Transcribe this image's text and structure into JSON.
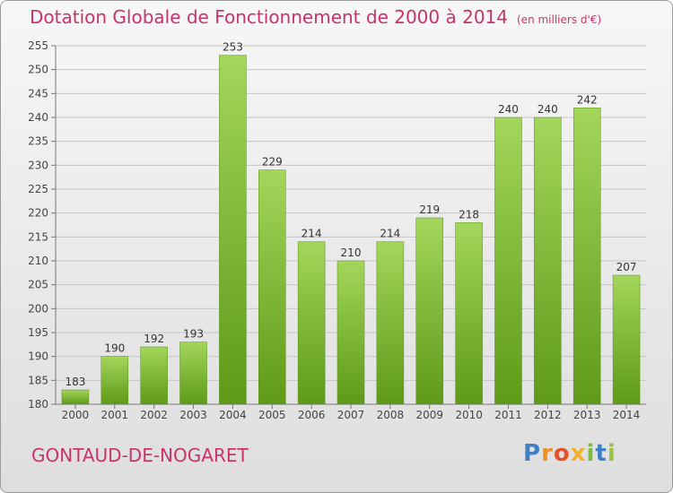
{
  "header": {
    "title": "Dotation Globale de Fonctionnement de 2000 à 2014",
    "unit": "(en milliers d'€)"
  },
  "commune": "GONTAUD-DE-NOGARET",
  "logo": {
    "letters": [
      "P",
      "r",
      "o",
      "x",
      "i",
      "t",
      "i"
    ],
    "colors": [
      "#3f7fc4",
      "#ef8f1f",
      "#e2532b",
      "#f2b02b",
      "#7dbb3c",
      "#3f7fc4",
      "#9ac33d"
    ]
  },
  "chart_data": {
    "type": "bar",
    "title": "Dotation Globale de Fonctionnement de 2000 à 2014",
    "categories": [
      "2000",
      "2001",
      "2002",
      "2003",
      "2004",
      "2005",
      "2006",
      "2007",
      "2008",
      "2009",
      "2010",
      "2011",
      "2012",
      "2013",
      "2014"
    ],
    "values": [
      183,
      190,
      192,
      193,
      253,
      229,
      214,
      210,
      214,
      219,
      218,
      240,
      240,
      242,
      207
    ],
    "ylim": [
      180,
      255
    ],
    "yticks": [
      180,
      185,
      190,
      195,
      200,
      205,
      210,
      215,
      220,
      225,
      230,
      235,
      240,
      245,
      250,
      255
    ],
    "grid": true,
    "bar_color": "#7fbf2a"
  }
}
